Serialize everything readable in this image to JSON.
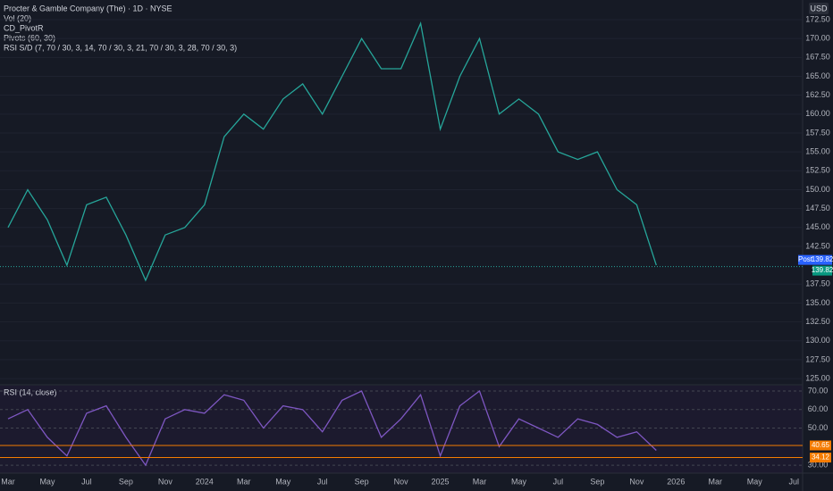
{
  "header": {
    "title": "Procter & Gamble Company (The) · 1D · NYSE",
    "indicators": [
      "Vol (20)",
      "CD_PivotR",
      "Pivots (60, 30)",
      "RSI S/D (7, 70 / 30, 3, 14, 70 / 30, 3, 21, 70 / 30, 3, 28, 70 / 30, 3)"
    ]
  },
  "currency": "USD",
  "post_label": "Post",
  "chart_data": [
    {
      "type": "line",
      "categories": [
        "Mar",
        null,
        "May",
        null,
        "Jul",
        null,
        "Sep",
        null,
        "Nov",
        null,
        "2024",
        null,
        "Mar",
        null,
        "May",
        null,
        "Jul",
        null,
        "Sep",
        null,
        "Nov",
        null,
        "2025",
        null,
        "Mar",
        null,
        "May",
        null,
        "Jul",
        null,
        "Sep",
        null,
        "Nov",
        null,
        "2026",
        null,
        "Mar",
        null,
        "May",
        null,
        "Jul"
      ],
      "series": [
        {
          "name": "Close",
          "color": "#26a69a",
          "values": [
            145,
            150,
            146,
            140,
            148,
            149,
            144,
            138,
            144,
            145,
            148,
            157,
            160,
            158,
            162,
            164,
            160,
            165,
            170,
            166,
            166,
            172,
            158,
            165,
            170,
            160,
            162,
            160,
            155,
            154,
            155,
            150,
            148,
            140,
            null,
            null,
            null,
            null,
            null,
            null,
            null
          ]
        }
      ],
      "ylim": [
        124.3,
        175.1
      ],
      "yticks": [
        {
          "value": 125,
          "label": "125.00"
        },
        {
          "value": 127.5,
          "label": "127.50"
        },
        {
          "value": 130,
          "label": "130.00"
        },
        {
          "value": 132.5,
          "label": "132.50"
        },
        {
          "value": 135,
          "label": "135.00"
        },
        {
          "value": 137.5,
          "label": "137.50"
        },
        {
          "value": 142.5,
          "label": "142.50"
        },
        {
          "value": 145,
          "label": "145.00"
        },
        {
          "value": 147.5,
          "label": "147.50"
        },
        {
          "value": 150,
          "label": "150.00"
        },
        {
          "value": 152.5,
          "label": "152.50"
        },
        {
          "value": 155,
          "label": "155.00"
        },
        {
          "value": 157.5,
          "label": "157.50"
        },
        {
          "value": 160,
          "label": "160.00"
        },
        {
          "value": 162.5,
          "label": "162.50"
        },
        {
          "value": 165,
          "label": "165.00"
        },
        {
          "value": 167.5,
          "label": "167.50"
        },
        {
          "value": 170,
          "label": "170.00"
        },
        {
          "value": 172.5,
          "label": "172.50"
        }
      ],
      "last_price": {
        "value": 139.82,
        "label": "139.82"
      },
      "grid": true
    },
    {
      "type": "line",
      "title": "RSI (14, close)",
      "series": [
        {
          "name": "RSI",
          "color": "#7e57c2",
          "values": [
            55,
            60,
            45,
            35,
            58,
            62,
            45,
            30,
            55,
            60,
            58,
            68,
            65,
            50,
            62,
            60,
            48,
            65,
            70,
            45,
            55,
            68,
            35,
            62,
            70,
            40,
            55,
            50,
            45,
            55,
            52,
            45,
            48,
            38,
            null,
            null,
            null,
            null,
            null,
            null,
            null
          ]
        }
      ],
      "ylim": [
        25.7,
        72.9
      ],
      "yticks": [
        {
          "value": 30,
          "label": "30.00"
        },
        {
          "value": 50,
          "label": "50.00"
        },
        {
          "value": 60,
          "label": "60.00"
        },
        {
          "value": 70,
          "label": "70.00"
        }
      ],
      "last_values": [
        {
          "value": 40.65,
          "label": "40.65",
          "color": "#f57c00"
        },
        {
          "value": 34.12,
          "label": "34.12",
          "color": "#f57c00"
        }
      ],
      "grid": true
    }
  ]
}
